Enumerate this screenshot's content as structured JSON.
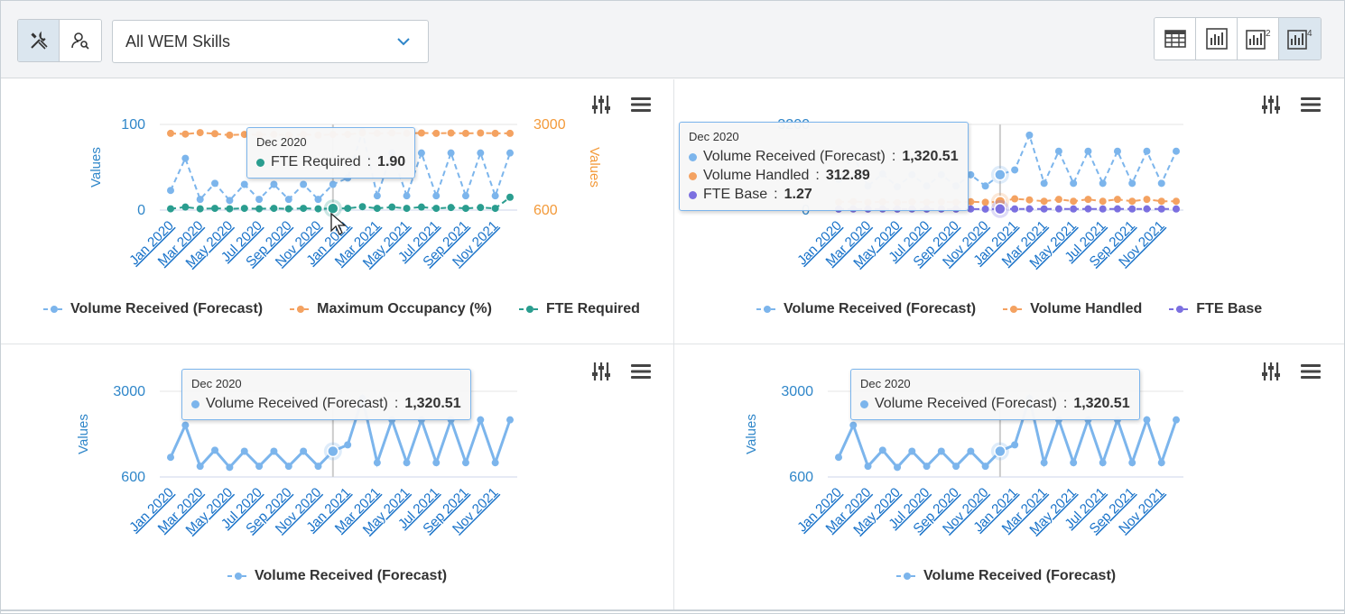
{
  "toolbar": {
    "skill_select_value": "All WEM Skills",
    "left_icons": [
      "tools-icon",
      "agent-search-icon"
    ],
    "right_icons": [
      "table-view-icon",
      "single-chart-icon",
      "two-charts-icon",
      "four-charts-icon"
    ],
    "right_badges": {
      "two": "2",
      "four": "4"
    }
  },
  "charts": [
    {
      "y_left": {
        "title": "Values",
        "ticks": [
          "100",
          "0"
        ],
        "color": "#2f86c9"
      },
      "y_right": {
        "title": "Values",
        "ticks": [
          "3000",
          "600"
        ],
        "color": "#f39a3a"
      },
      "legend": [
        "Volume Received (Forecast)",
        "Maximum Occupancy (%)",
        "FTE Required"
      ],
      "tooltip": {
        "header": "Dec 2020",
        "rows": [
          {
            "label": "FTE Required",
            "value": "1.90",
            "color": "#2a9d8f"
          }
        ]
      }
    },
    {
      "y_left": {
        "ticks": [
          "3200",
          "0"
        ]
      },
      "legend": [
        "Volume Received (Forecast)",
        "Volume Handled",
        "FTE Base"
      ],
      "tooltip": {
        "header": "Dec 2020",
        "rows": [
          {
            "label": "Volume Received (Forecast)",
            "value": "1,320.51",
            "color": "#7cb5ec"
          },
          {
            "label": "Volume Handled",
            "value": "312.89",
            "color": "#f4a261"
          },
          {
            "label": "FTE Base",
            "value": "1.27",
            "color": "#7b6fe0"
          }
        ]
      }
    },
    {
      "y_left": {
        "title": "Values",
        "ticks": [
          "3000",
          "600"
        ]
      },
      "legend": [
        "Volume Received (Forecast)"
      ],
      "tooltip": {
        "header": "Dec 2020",
        "rows": [
          {
            "label": "Volume Received (Forecast)",
            "value": "1,320.51",
            "color": "#7cb5ec"
          }
        ]
      }
    },
    {
      "y_left": {
        "title": "Values",
        "ticks": [
          "3000",
          "600"
        ]
      },
      "legend": [
        "Volume Received (Forecast)"
      ],
      "tooltip": {
        "header": "Dec 2020",
        "rows": [
          {
            "label": "Volume Received (Forecast)",
            "value": "1,320.51",
            "color": "#7cb5ec"
          }
        ]
      }
    }
  ],
  "x_labels": [
    "Jan 2020",
    "Mar 2020",
    "May 2020",
    "Jul 2020",
    "Sep 2020",
    "Nov 2020",
    "Jan 2021",
    "Mar 2021",
    "May 2021",
    "Jul 2021",
    "Sep 2021",
    "Nov 2021"
  ],
  "colors": {
    "series_blue": "#7cb5ec",
    "series_orange": "#f4a261",
    "series_teal": "#2a9d8f",
    "series_purple": "#7b6fe0",
    "axis_blue": "#2f86c9",
    "axis_orange": "#f39a3a"
  },
  "chart_data": [
    {
      "type": "line",
      "x": [
        "Jan 2020",
        "Feb 2020",
        "Mar 2020",
        "Apr 2020",
        "May 2020",
        "Jun 2020",
        "Jul 2020",
        "Aug 2020",
        "Sep 2020",
        "Oct 2020",
        "Nov 2020",
        "Dec 2020",
        "Jan 2021",
        "Feb 2021",
        "Mar 2021",
        "Apr 2021",
        "May 2021",
        "Jun 2021",
        "Jul 2021",
        "Aug 2021",
        "Sep 2021",
        "Oct 2021",
        "Nov 2021",
        "Dec 2021"
      ],
      "series": [
        {
          "name": "Volume Received (Forecast)",
          "axis": "right",
          "values": [
            1150,
            2050,
            900,
            1350,
            870,
            1320,
            900,
            1320,
            900,
            1320,
            900,
            1320,
            1500,
            2800,
            1000,
            2200,
            1000,
            2200,
            1000,
            2200,
            1000,
            2200,
            1000,
            2200
          ]
        },
        {
          "name": "Maximum Occupancy (%)",
          "axis": "right",
          "values": [
            2750,
            2730,
            2770,
            2740,
            2700,
            2720,
            2710,
            2720,
            2700,
            2720,
            2700,
            2720,
            2720,
            2760,
            2750,
            2760,
            2750,
            2760,
            2750,
            2760,
            2750,
            2760,
            2750,
            2750
          ]
        },
        {
          "name": "FTE Required",
          "axis": "left",
          "values": [
            1.5,
            3.5,
            1.5,
            2.0,
            1.5,
            2.0,
            1.5,
            2.0,
            1.5,
            2.0,
            1.5,
            1.9,
            2.0,
            4.0,
            2.0,
            3.5,
            2.0,
            3.5,
            2.0,
            3.0,
            2.0,
            3.0,
            2.0,
            15
          ]
        }
      ],
      "y_left_range": [
        0,
        100
      ],
      "y_right_range": [
        600,
        3000
      ],
      "legend_position": "bottom"
    },
    {
      "type": "line",
      "x": [
        "Jan 2020",
        "Feb 2020",
        "Mar 2020",
        "Apr 2020",
        "May 2020",
        "Jun 2020",
        "Jul 2020",
        "Aug 2020",
        "Sep 2020",
        "Oct 2020",
        "Nov 2020",
        "Dec 2020",
        "Jan 2021",
        "Feb 2021",
        "Mar 2021",
        "Apr 2021",
        "May 2021",
        "Jun 2021",
        "Jul 2021",
        "Aug 2021",
        "Sep 2021",
        "Oct 2021",
        "Nov 2021",
        "Dec 2021"
      ],
      "series": [
        {
          "name": "Volume Received (Forecast)",
          "values": [
            1150,
            2050,
            900,
            1350,
            870,
            1320,
            900,
            1320,
            900,
            1320,
            900,
            1320.51,
            1500,
            2800,
            1000,
            2200,
            1000,
            2200,
            1000,
            2200,
            1000,
            2200,
            1000,
            2200
          ]
        },
        {
          "name": "Volume Handled",
          "values": [
            300,
            320,
            290,
            310,
            280,
            310,
            290,
            310,
            290,
            310,
            290,
            312.89,
            420,
            380,
            330,
            400,
            330,
            400,
            330,
            400,
            330,
            400,
            330,
            330
          ]
        },
        {
          "name": "FTE Base",
          "values": [
            1.2,
            1.3,
            1.2,
            1.3,
            1.2,
            1.3,
            1.2,
            1.3,
            1.2,
            1.3,
            1.2,
            1.27,
            1.3,
            1.4,
            1.3,
            1.4,
            1.3,
            1.4,
            1.3,
            1.4,
            1.3,
            1.4,
            1.3,
            1.3
          ]
        }
      ],
      "y_range": [
        0,
        3200
      ],
      "legend_position": "bottom"
    },
    {
      "type": "line",
      "x": [
        "Jan 2020",
        "Feb 2020",
        "Mar 2020",
        "Apr 2020",
        "May 2020",
        "Jun 2020",
        "Jul 2020",
        "Aug 2020",
        "Sep 2020",
        "Oct 2020",
        "Nov 2020",
        "Dec 2020",
        "Jan 2021",
        "Feb 2021",
        "Mar 2021",
        "Apr 2021",
        "May 2021",
        "Jun 2021",
        "Jul 2021",
        "Aug 2021",
        "Sep 2021",
        "Oct 2021",
        "Nov 2021",
        "Dec 2021"
      ],
      "series": [
        {
          "name": "Volume Received (Forecast)",
          "values": [
            1150,
            2050,
            900,
            1350,
            870,
            1320,
            900,
            1320,
            900,
            1320,
            900,
            1320.51,
            1500,
            2800,
            1000,
            2200,
            1000,
            2200,
            1000,
            2200,
            1000,
            2200,
            1000,
            2200
          ]
        }
      ],
      "y_range": [
        600,
        3000
      ],
      "legend_position": "bottom"
    },
    {
      "type": "line",
      "x": [
        "Jan 2020",
        "Feb 2020",
        "Mar 2020",
        "Apr 2020",
        "May 2020",
        "Jun 2020",
        "Jul 2020",
        "Aug 2020",
        "Sep 2020",
        "Oct 2020",
        "Nov 2020",
        "Dec 2020",
        "Jan 2021",
        "Feb 2021",
        "Mar 2021",
        "Apr 2021",
        "May 2021",
        "Jun 2021",
        "Jul 2021",
        "Aug 2021",
        "Sep 2021",
        "Oct 2021",
        "Nov 2021",
        "Dec 2021"
      ],
      "series": [
        {
          "name": "Volume Received (Forecast)",
          "values": [
            1150,
            2050,
            900,
            1350,
            870,
            1320,
            900,
            1320,
            900,
            1320,
            900,
            1320.51,
            1500,
            2800,
            1000,
            2200,
            1000,
            2200,
            1000,
            2200,
            1000,
            2200,
            1000,
            2200
          ]
        }
      ],
      "y_range": [
        600,
        3000
      ],
      "legend_position": "bottom"
    }
  ]
}
